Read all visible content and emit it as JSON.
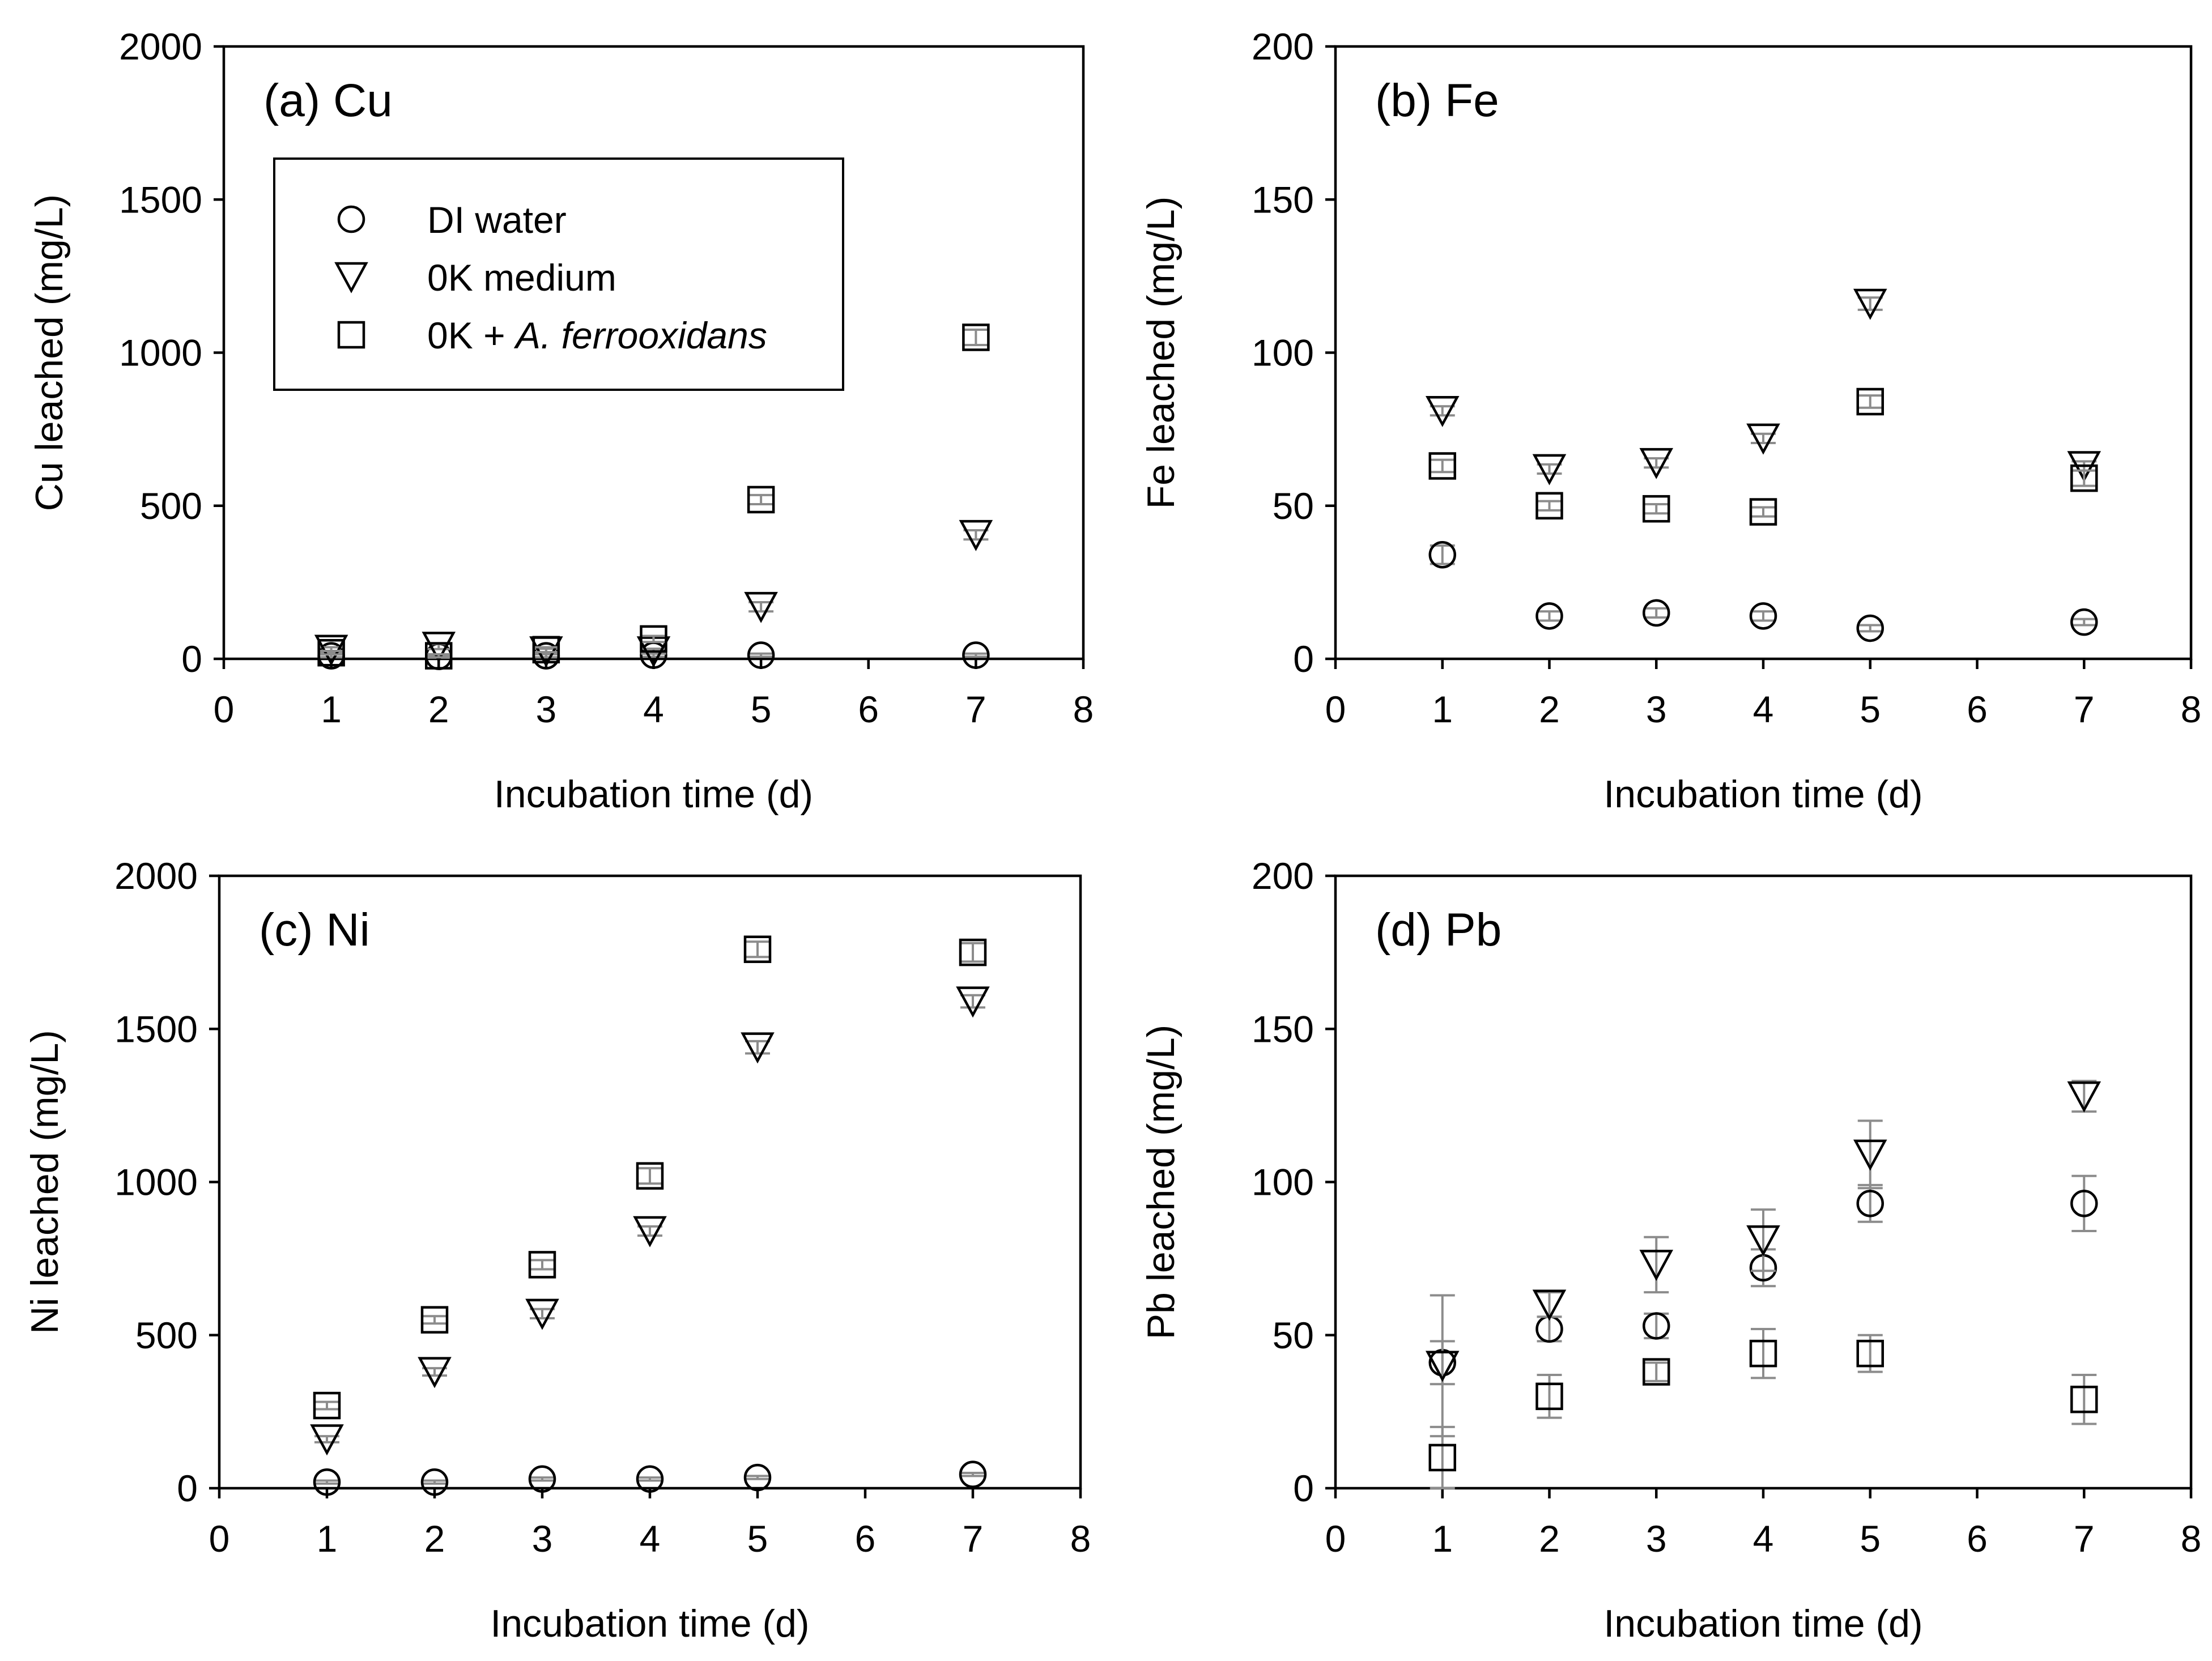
{
  "chart_data": [
    {
      "type": "scatter",
      "id": "cu",
      "title": "(a) Cu",
      "xlabel": "Incubation time (d)",
      "ylabel": "Cu leached (mg/L)",
      "xlim": [
        0,
        8
      ],
      "ylim": [
        0,
        2000
      ],
      "xticks": [
        "0",
        "1",
        "2",
        "3",
        "4",
        "5",
        "6",
        "7",
        "8"
      ],
      "yticks": [
        "0",
        "500",
        "1000",
        "1500",
        "2000"
      ],
      "x": [
        1,
        2,
        3,
        4,
        5,
        7
      ],
      "legend": {
        "position": "top-left",
        "entries": [
          {
            "label": "DI water",
            "marker": "circle"
          },
          {
            "label": "0K medium",
            "marker": "triangle-down"
          },
          {
            "label_plain": "0K + ",
            "label_italic": "A. ferrooxidans",
            "marker": "square"
          }
        ]
      },
      "series": [
        {
          "name": "DI water",
          "marker": "circle",
          "values": [
            10,
            8,
            10,
            12,
            12,
            12
          ],
          "errors": [
            5,
            4,
            5,
            5,
            5,
            5
          ]
        },
        {
          "name": "0K medium",
          "marker": "triangle-down",
          "values": [
            30,
            40,
            25,
            25,
            170,
            405
          ],
          "errors": [
            8,
            8,
            8,
            8,
            15,
            15
          ]
        },
        {
          "name": "0K + A. ferrooxidans",
          "marker": "square",
          "values": [
            20,
            10,
            30,
            65,
            520,
            1050
          ],
          "errors": [
            6,
            5,
            8,
            10,
            15,
            25
          ]
        }
      ]
    },
    {
      "type": "scatter",
      "id": "fe",
      "title": "(b) Fe",
      "xlabel": "Incubation time (d)",
      "ylabel": "Fe leached (mg/L)",
      "xlim": [
        0,
        8
      ],
      "ylim": [
        0,
        200
      ],
      "xticks": [
        "0",
        "1",
        "2",
        "3",
        "4",
        "5",
        "6",
        "7",
        "8"
      ],
      "yticks": [
        "0",
        "50",
        "100",
        "150",
        "200"
      ],
      "x": [
        1,
        2,
        3,
        4,
        5,
        7
      ],
      "series": [
        {
          "name": "DI water",
          "marker": "circle",
          "values": [
            34,
            14,
            15,
            14,
            10,
            12
          ],
          "errors": [
            3,
            1.5,
            1.5,
            1.5,
            1,
            1
          ]
        },
        {
          "name": "0K medium",
          "marker": "triangle-down",
          "values": [
            81,
            62,
            64,
            72,
            116,
            63
          ],
          "errors": [
            1.5,
            1.5,
            1.5,
            1.5,
            2,
            1.5
          ]
        },
        {
          "name": "0K + A. ferrooxidans",
          "marker": "square",
          "values": [
            63,
            50,
            49,
            48,
            84,
            59
          ],
          "errors": [
            2,
            1.5,
            1.5,
            1.5,
            2,
            2.5
          ]
        }
      ]
    },
    {
      "type": "scatter",
      "id": "ni",
      "title": "(c) Ni",
      "xlabel": "Incubation time (d)",
      "ylabel": "Ni leached (mg/L)",
      "xlim": [
        0,
        8
      ],
      "ylim": [
        0,
        2000
      ],
      "xticks": [
        "0",
        "1",
        "2",
        "3",
        "4",
        "5",
        "6",
        "7",
        "8"
      ],
      "yticks": [
        "0",
        "500",
        "1000",
        "1500",
        "2000"
      ],
      "x": [
        1,
        2,
        3,
        4,
        5,
        7
      ],
      "series": [
        {
          "name": "DI water",
          "marker": "circle",
          "values": [
            20,
            20,
            30,
            30,
            35,
            45
          ],
          "errors": [
            5,
            5,
            5,
            5,
            5,
            5
          ]
        },
        {
          "name": "0K medium",
          "marker": "triangle-down",
          "values": [
            160,
            380,
            570,
            840,
            1440,
            1590
          ],
          "errors": [
            10,
            12,
            15,
            15,
            20,
            20
          ]
        },
        {
          "name": "0K + A. ferrooxidans",
          "marker": "square",
          "values": [
            270,
            550,
            730,
            1020,
            1760,
            1750
          ],
          "errors": [
            12,
            12,
            15,
            25,
            25,
            30
          ]
        }
      ]
    },
    {
      "type": "scatter",
      "id": "pb",
      "title": "(d) Pb",
      "xlabel": "Incubation time (d)",
      "ylabel": "Pb leached (mg/L)",
      "xlim": [
        0,
        8
      ],
      "ylim": [
        0,
        200
      ],
      "xticks": [
        "0",
        "1",
        "2",
        "3",
        "4",
        "5",
        "6",
        "7",
        "8"
      ],
      "yticks": [
        "0",
        "50",
        "100",
        "150",
        "200"
      ],
      "x": [
        1,
        2,
        3,
        4,
        5,
        7
      ],
      "series": [
        {
          "name": "DI water",
          "marker": "circle",
          "values": [
            41,
            52,
            53,
            72,
            93,
            93
          ],
          "errors": [
            7,
            4,
            4,
            6,
            6,
            9
          ]
        },
        {
          "name": "0K medium",
          "marker": "triangle-down",
          "values": [
            40,
            60,
            73,
            81,
            109,
            128
          ],
          "errors": [
            23,
            4,
            9,
            10,
            11,
            5
          ]
        },
        {
          "name": "0K + A. ferrooxidans",
          "marker": "square",
          "values": [
            10,
            30,
            38,
            44,
            44,
            29
          ],
          "errors": [
            10,
            7,
            3,
            8,
            6,
            8
          ]
        }
      ]
    }
  ]
}
